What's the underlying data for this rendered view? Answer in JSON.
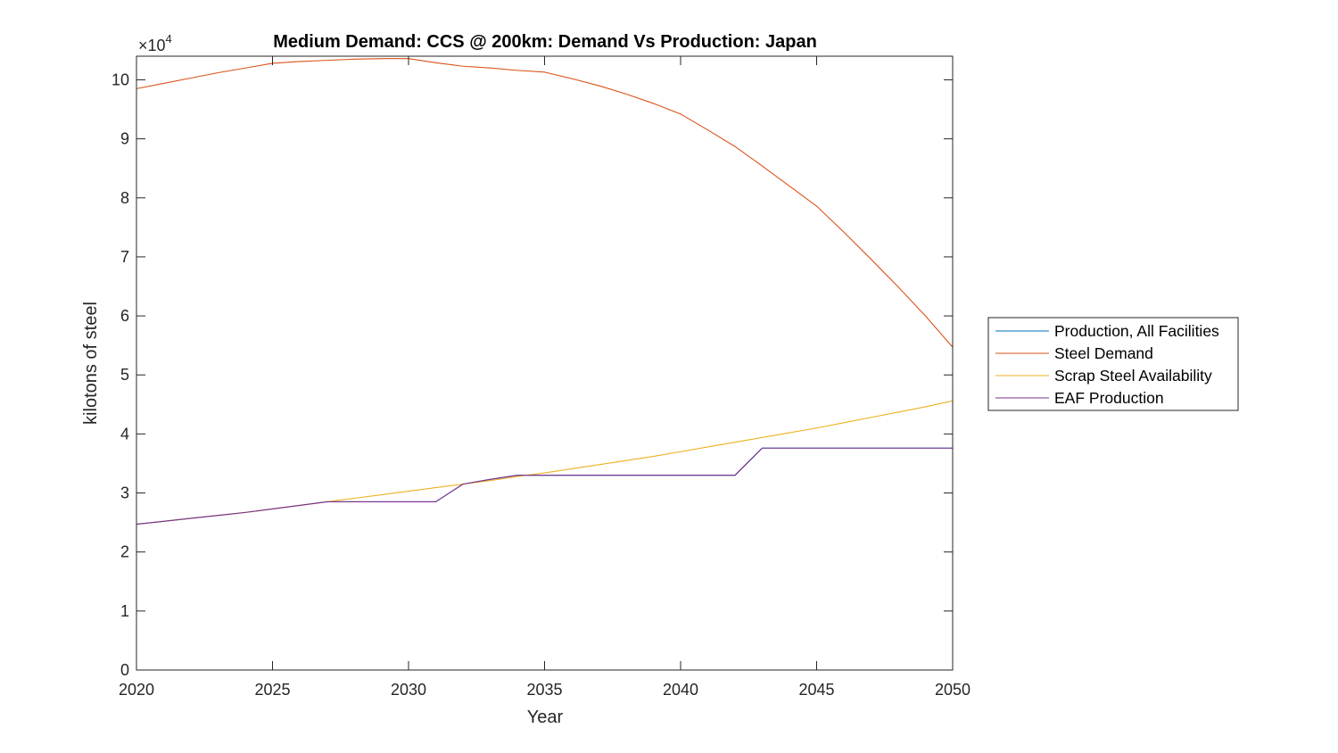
{
  "chart_data": {
    "type": "line",
    "title": "Medium Demand: CCS @ 200km: Demand Vs Production: Japan",
    "xlabel": "Year",
    "ylabel": "kilotons of steel",
    "exponent_label": "×10",
    "exponent_power": "4",
    "xlim": [
      2020,
      2050
    ],
    "ylim": [
      0,
      104000
    ],
    "x_ticks": [
      "2020",
      "2025",
      "2030",
      "2035",
      "2040",
      "2045",
      "2050"
    ],
    "y_ticks": [
      "0",
      "1",
      "2",
      "3",
      "4",
      "5",
      "6",
      "7",
      "8",
      "9",
      "10"
    ],
    "grid": false,
    "legend_position": "outside-right",
    "x": [
      2020,
      2021,
      2022,
      2023,
      2024,
      2025,
      2026,
      2027,
      2028,
      2029,
      2030,
      2031,
      2032,
      2033,
      2034,
      2035,
      2036,
      2037,
      2038,
      2039,
      2040,
      2041,
      2042,
      2043,
      2044,
      2045,
      2046,
      2047,
      2048,
      2049,
      2050
    ],
    "series": [
      {
        "name": "Production, All Facilities",
        "color": "#0072BD",
        "values": [
          24700,
          25200,
          25700,
          26200,
          26700,
          27300,
          27900,
          28500,
          28500,
          28500,
          28500,
          28500,
          31500,
          32300,
          33000,
          33000,
          33000,
          33000,
          33000,
          33000,
          33000,
          33000,
          33000,
          37600,
          37600,
          37600,
          37600,
          37600,
          37600,
          37600,
          37600
        ]
      },
      {
        "name": "Steel Demand",
        "color": "#D95319",
        "values": [
          98500,
          99400,
          100300,
          101200,
          102000,
          102800,
          103100,
          103300,
          103500,
          103600,
          103600,
          102900,
          102300,
          102000,
          101600,
          101300,
          100200,
          99000,
          97600,
          96000,
          94200,
          91500,
          88700,
          85400,
          82000,
          78600,
          74200,
          69600,
          64900,
          60000,
          54700
        ]
      },
      {
        "name": "Scrap Steel Availability",
        "color": "#EDB120",
        "values": [
          24700,
          25200,
          25700,
          26200,
          26700,
          27300,
          27900,
          28500,
          29100,
          29700,
          30300,
          30900,
          31500,
          32100,
          32800,
          33400,
          34100,
          34800,
          35500,
          36200,
          37000,
          37800,
          38600,
          39400,
          40200,
          41000,
          41900,
          42800,
          43700,
          44600,
          45600
        ]
      },
      {
        "name": "EAF Production",
        "color": "#7E2F8E",
        "values": [
          24700,
          25200,
          25700,
          26200,
          26700,
          27300,
          27900,
          28500,
          28500,
          28500,
          28500,
          28500,
          31500,
          32300,
          33000,
          33000,
          33000,
          33000,
          33000,
          33000,
          33000,
          33000,
          33000,
          37600,
          37600,
          37600,
          37600,
          37600,
          37600,
          37600,
          37600
        ]
      }
    ]
  }
}
